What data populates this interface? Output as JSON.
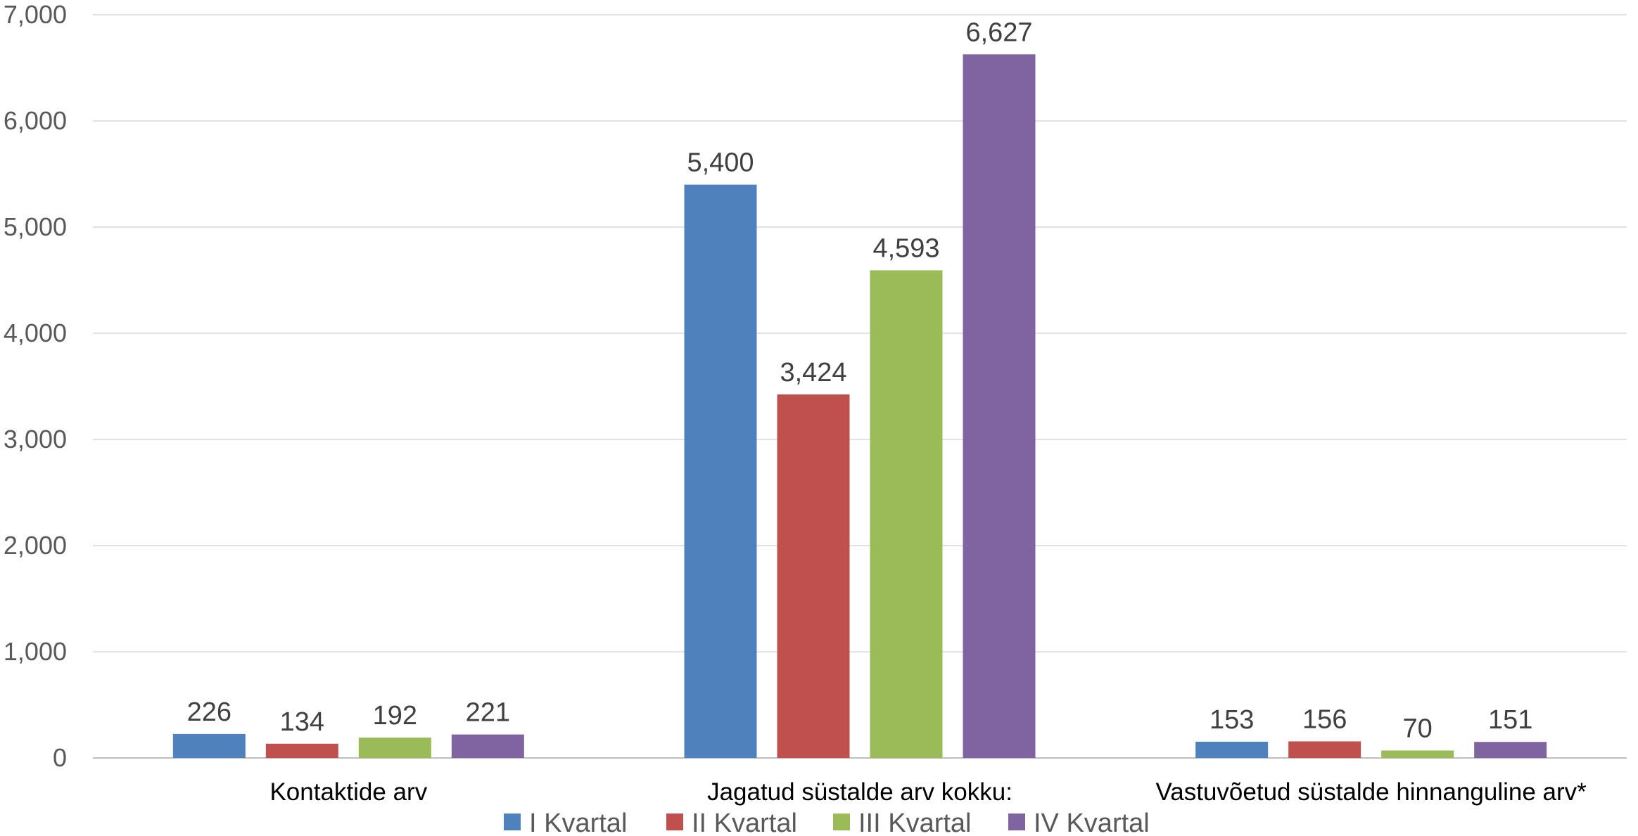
{
  "chart_data": {
    "type": "bar",
    "categories": [
      "Kontaktide arv",
      "Jagatud süstalde arv kokku:",
      "Vastuvõetud süstalde hinnanguline arv*"
    ],
    "series": [
      {
        "name": "I Kvartal",
        "color": "#4F81BD",
        "values": [
          226,
          5400,
          153
        ],
        "labels": [
          "226",
          "5,400",
          "153"
        ]
      },
      {
        "name": "II Kvartal",
        "color": "#C0504D",
        "values": [
          134,
          3424,
          156
        ],
        "labels": [
          "134",
          "3,424",
          "156"
        ]
      },
      {
        "name": "III Kvartal",
        "color": "#9BBB59",
        "values": [
          192,
          4593,
          70
        ],
        "labels": [
          "192",
          "4,593",
          "70"
        ]
      },
      {
        "name": "IV Kvartal",
        "color": "#8064A2",
        "values": [
          221,
          6627,
          151
        ],
        "labels": [
          "221",
          "6,627",
          "151"
        ]
      }
    ],
    "ylim": [
      0,
      7000
    ],
    "yticks": [
      0,
      1000,
      2000,
      3000,
      4000,
      5000,
      6000,
      7000
    ],
    "ytick_labels": [
      "0",
      "1,000",
      "2,000",
      "3,000",
      "4,000",
      "5,000",
      "6,000",
      "7,000"
    ],
    "grid": true,
    "legend": "bottom",
    "title": "",
    "xlabel": "",
    "ylabel": ""
  }
}
